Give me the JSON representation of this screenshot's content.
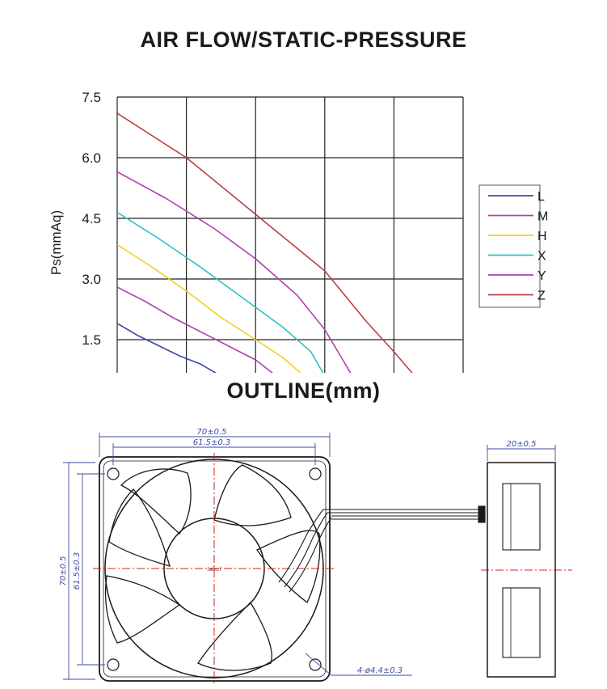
{
  "chart_data": {
    "type": "line",
    "title": "AIR FLOW/STATIC-PRESSURE",
    "ylabel": "Ps(mmAq)",
    "xlabel": "",
    "yticks": [
      "7.5",
      "6.0",
      "4.5",
      "3.0",
      "1.5"
    ],
    "ylim": [
      0.5,
      7.5
    ],
    "xlim": [
      0,
      5
    ],
    "grid": true,
    "legend_position": "right",
    "series": [
      {
        "name": "L",
        "color": "#3a4aa8",
        "x": [
          0,
          0.3,
          0.6,
          0.9,
          1.2,
          1.5
        ],
        "y": [
          1.9,
          1.6,
          1.35,
          1.1,
          0.9,
          0.6
        ]
      },
      {
        "name": "M",
        "color": "#b040b0",
        "x": [
          0,
          0.4,
          0.8,
          1.2,
          1.6,
          2.0,
          2.3
        ],
        "y": [
          2.8,
          2.45,
          2.05,
          1.7,
          1.35,
          1.0,
          0.6
        ]
      },
      {
        "name": "H",
        "color": "#f0d020",
        "x": [
          0,
          0.5,
          1.0,
          1.5,
          2.0,
          2.4,
          2.7
        ],
        "y": [
          3.85,
          3.3,
          2.7,
          2.05,
          1.5,
          1.05,
          0.6
        ]
      },
      {
        "name": "X",
        "color": "#30c0c0",
        "x": [
          0,
          0.6,
          1.2,
          1.8,
          2.4,
          2.8,
          3.0
        ],
        "y": [
          4.65,
          4.0,
          3.3,
          2.55,
          1.8,
          1.2,
          0.6
        ]
      },
      {
        "name": "Y",
        "color": "#b040b0",
        "x": [
          0,
          0.7,
          1.4,
          2.0,
          2.6,
          3.0,
          3.4
        ],
        "y": [
          5.65,
          5.0,
          4.25,
          3.5,
          2.6,
          1.75,
          0.6
        ]
      },
      {
        "name": "Z",
        "color": "#b84040",
        "x": [
          0,
          1.0,
          2.0,
          3.0,
          3.6,
          4.0,
          4.3
        ],
        "y": [
          7.1,
          6.0,
          4.6,
          3.2,
          1.95,
          1.2,
          0.6
        ]
      }
    ]
  },
  "outline": {
    "title": "OUTLINE(mm)",
    "dim_outer_width": "70±0.5",
    "dim_hole_width": "61.5±0.3",
    "dim_outer_height": "70±0.5",
    "dim_hole_height": "61.5±0.3",
    "dim_depth": "20±0.5",
    "dim_holes": "4-ø4.4±0.3",
    "hub_label": "label"
  }
}
